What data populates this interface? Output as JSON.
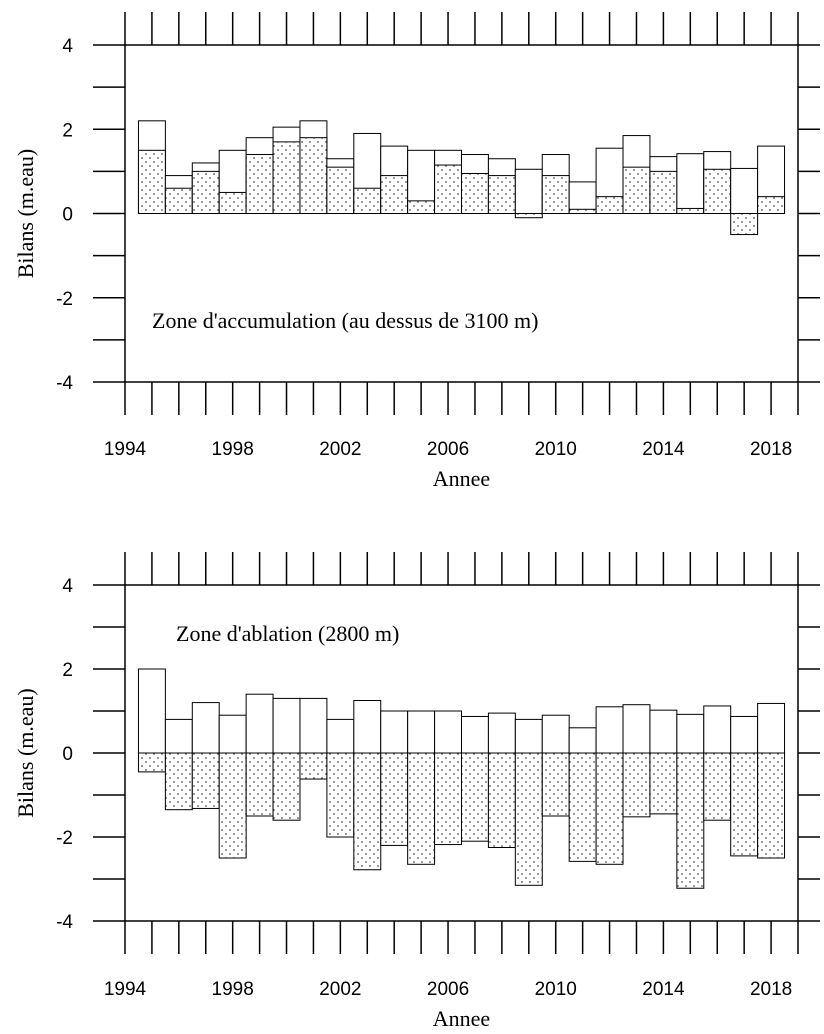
{
  "chart_data": [
    {
      "type": "bar",
      "annotation": "Zone d'accumulation (au dessus de 3100 m)",
      "xlabel": "Annee",
      "ylabel": "Bilans (m.eau)",
      "ylim": [
        -4,
        4
      ],
      "yticks": [
        "4",
        "2",
        "0",
        "-2",
        "-4"
      ],
      "xticks": [
        "1994",
        "1998",
        "2002",
        "2006",
        "2010",
        "2014",
        "2018"
      ],
      "xlim": [
        1994,
        2019
      ],
      "grid": false,
      "categories": [
        1995,
        1996,
        1997,
        1998,
        1999,
        2000,
        2001,
        2002,
        2003,
        2004,
        2005,
        2006,
        2007,
        2008,
        2009,
        2010,
        2011,
        2012,
        2013,
        2014,
        2015,
        2016,
        2017,
        2018
      ],
      "series": [
        {
          "style": "open",
          "values": [
            2.2,
            0.9,
            1.2,
            1.5,
            1.8,
            2.05,
            2.2,
            1.3,
            1.9,
            1.6,
            1.5,
            1.5,
            1.4,
            1.3,
            1.05,
            1.4,
            0.75,
            1.55,
            1.85,
            1.35,
            1.42,
            1.47,
            1.07,
            1.6
          ]
        },
        {
          "style": "dotted",
          "values": [
            1.5,
            0.6,
            1.0,
            0.5,
            1.4,
            1.7,
            1.8,
            1.1,
            0.6,
            0.9,
            0.3,
            1.15,
            0.95,
            0.9,
            -0.1,
            0.9,
            0.1,
            0.4,
            1.1,
            1.0,
            0.12,
            1.05,
            -0.5,
            0.4
          ]
        }
      ]
    },
    {
      "type": "bar",
      "annotation": "Zone d'ablation (2800 m)",
      "xlabel": "Annee",
      "ylabel": "Bilans (m.eau)",
      "ylim": [
        -4,
        4
      ],
      "yticks": [
        "4",
        "2",
        "0",
        "-2",
        "-4"
      ],
      "xticks": [
        "1994",
        "1998",
        "2002",
        "2006",
        "2010",
        "2014",
        "2018"
      ],
      "xlim": [
        1994,
        2019
      ],
      "grid": false,
      "categories": [
        1995,
        1996,
        1997,
        1998,
        1999,
        2000,
        2001,
        2002,
        2003,
        2004,
        2005,
        2006,
        2007,
        2008,
        2009,
        2010,
        2011,
        2012,
        2013,
        2014,
        2015,
        2016,
        2017,
        2018
      ],
      "series": [
        {
          "style": "open",
          "values": [
            2.0,
            0.8,
            1.2,
            0.9,
            1.4,
            1.3,
            1.3,
            0.8,
            1.25,
            1.0,
            1.0,
            1.0,
            0.87,
            0.95,
            0.8,
            0.9,
            0.6,
            1.1,
            1.15,
            1.02,
            0.92,
            1.12,
            0.87,
            1.18
          ]
        },
        {
          "style": "dotted",
          "values": [
            -0.45,
            -1.35,
            -1.32,
            -2.5,
            -1.5,
            -1.6,
            -0.62,
            -2.0,
            -2.78,
            -2.2,
            -2.65,
            -2.18,
            -2.1,
            -2.25,
            -3.15,
            -1.5,
            -2.58,
            -2.65,
            -1.52,
            -1.45,
            -3.22,
            -1.6,
            -2.45,
            -2.5
          ]
        }
      ]
    }
  ]
}
